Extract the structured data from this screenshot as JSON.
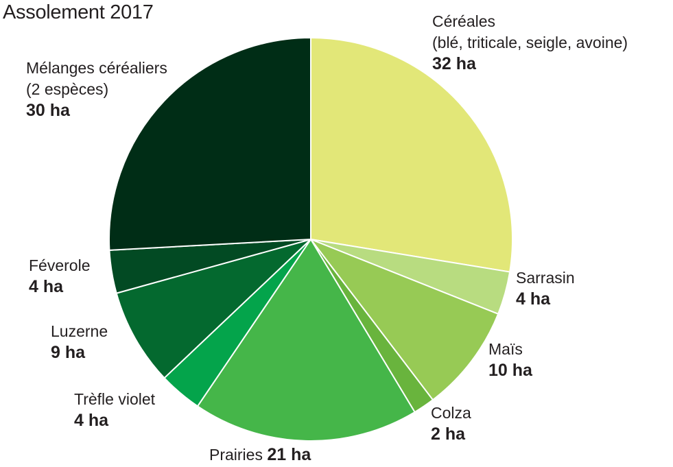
{
  "chart_data": {
    "type": "pie",
    "title": "Assolement 2017",
    "unit": "ha",
    "slices": [
      {
        "label": "Céréales",
        "sublabel": "(blé, triticale, seigle, avoine)",
        "value": 32,
        "value_text": "32 ha",
        "color": "#e2e778"
      },
      {
        "label": "Sarrasin",
        "value": 4,
        "value_text": "4 ha",
        "color": "#b8dc80"
      },
      {
        "label": "Maïs",
        "value": 10,
        "value_text": "10 ha",
        "color": "#97ca55"
      },
      {
        "label": "Colza",
        "value": 2,
        "value_text": "2 ha",
        "color": "#69b43d"
      },
      {
        "label": "Prairies",
        "value": 21,
        "value_text": "21 ha",
        "color": "#45b649"
      },
      {
        "label": "Trèfle violet",
        "value": 4,
        "value_text": "4 ha",
        "color": "#04a44b"
      },
      {
        "label": "Luzerne",
        "value": 9,
        "value_text": "9 ha",
        "color": "#04692f"
      },
      {
        "label": "Féverole",
        "value": 4,
        "value_text": "4 ha",
        "color": "#024a23"
      },
      {
        "label": "Mélanges céréaliers",
        "sublabel": "(2 espèces)",
        "value": 30,
        "value_text": "30 ha",
        "color": "#002d16"
      }
    ]
  }
}
